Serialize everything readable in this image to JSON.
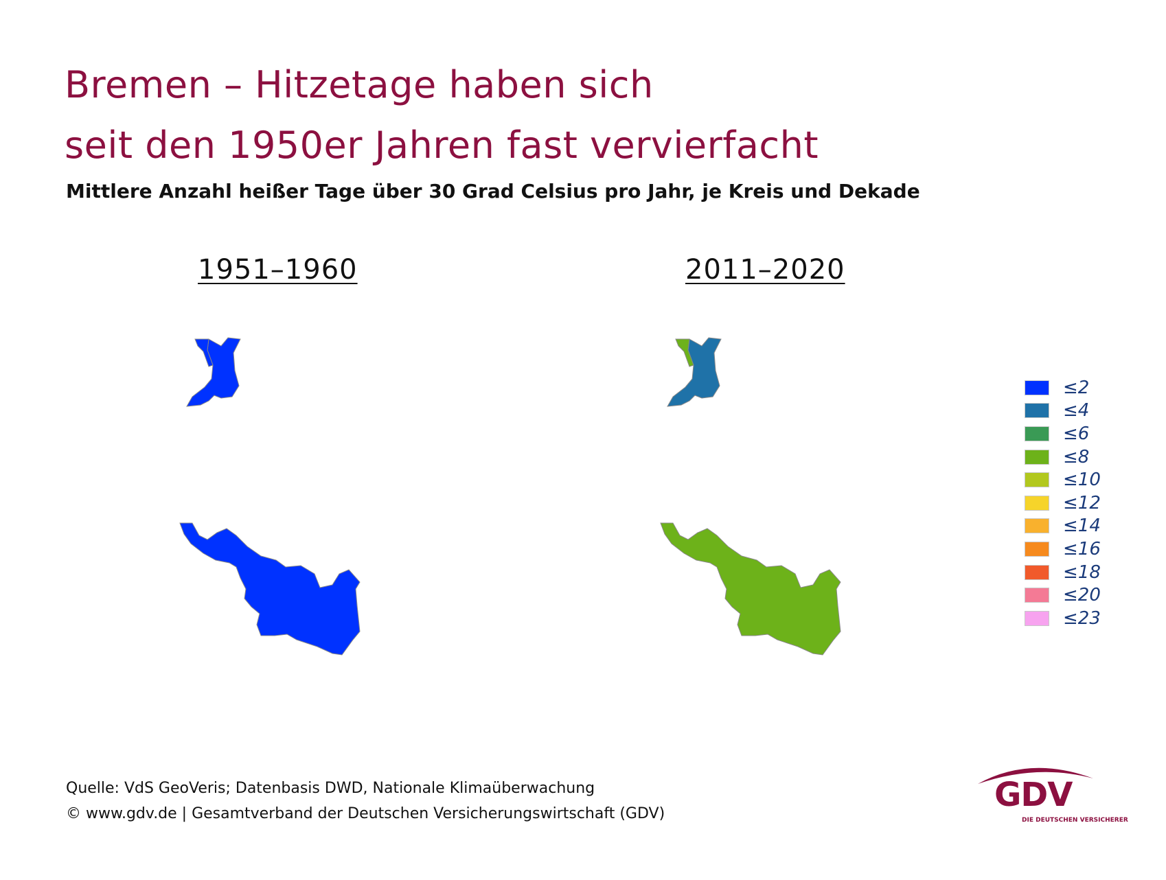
{
  "title": {
    "line1": "Bremen – Hitzetage haben sich",
    "line2": "seit den 1950er Jahren fast vervierfacht"
  },
  "subtitle": "Mittlere Anzahl heißer Tage über 30 Grad Celsius pro Jahr, je Kreis und Dekade",
  "maps": [
    {
      "period": "1951–1960",
      "regions": {
        "bremerhaven_north": "#0032ff",
        "bremerhaven_main": "#0032ff",
        "bremen_city": "#0032ff"
      }
    },
    {
      "period": "2011–2020",
      "regions": {
        "bremerhaven_north": "#6db21a",
        "bremerhaven_main": "#1f72a8",
        "bremen_city": "#6db21a"
      }
    }
  ],
  "legend": [
    {
      "label": "≤2",
      "color": "#0032ff"
    },
    {
      "label": "≤4",
      "color": "#1f72a8"
    },
    {
      "label": "≤6",
      "color": "#3a9a55"
    },
    {
      "label": "≤8",
      "color": "#6db21a"
    },
    {
      "label": "≤10",
      "color": "#b2c81e"
    },
    {
      "label": "≤12",
      "color": "#f6d42a"
    },
    {
      "label": "≤14",
      "color": "#f9b12d"
    },
    {
      "label": "≤16",
      "color": "#f68a1e"
    },
    {
      "label": "≤18",
      "color": "#f15a2b"
    },
    {
      "label": "≤20",
      "color": "#f47a95"
    },
    {
      "label": "≤23",
      "color": "#f7a3ef"
    }
  ],
  "source": {
    "line1": "Quelle: VdS GeoVeris; Datenbasis DWD, Nationale Klimaüberwachung",
    "line2": "© www.gdv.de | Gesamtverband der Deutschen Versicherungswirtschaft (GDV)"
  },
  "logo": {
    "text": "GDV",
    "subtext": "DIE DEUTSCHEN VERSICHERER",
    "color": "#8c1040"
  }
}
